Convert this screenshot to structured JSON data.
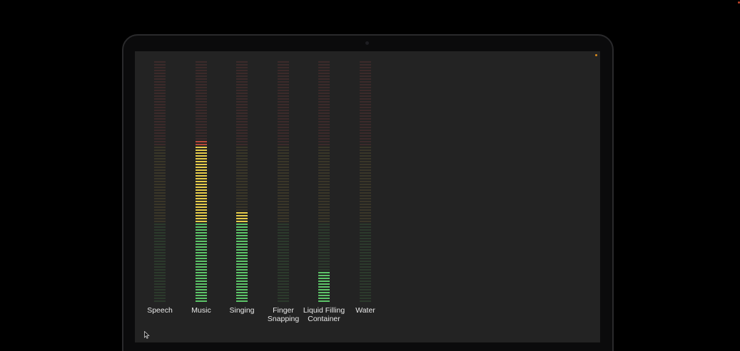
{
  "app": {
    "screen_background": "#232323",
    "status_indicator_color": "#d98a1c"
  },
  "meters": [
    {
      "label": "Speech",
      "level": 0.0
    },
    {
      "label": "Music",
      "level": 0.67
    },
    {
      "label": "Singing",
      "level": 0.38
    },
    {
      "label": "Finger\nSnapping",
      "level": 0.0
    },
    {
      "label": "Liquid Filling\nContainer",
      "level": 0.13
    },
    {
      "label": "Water",
      "level": 0.0
    }
  ],
  "colors": {
    "green_lit": "#5cc568",
    "yellow_lit": "#e6cc4a",
    "red_lit": "#b84a3a",
    "green_dim": "#2c3a2c",
    "yellow_dim": "#3a3628",
    "red_dim": "#3c2a2a"
  },
  "cursor": {
    "icon": "pointer-arrow-icon"
  }
}
